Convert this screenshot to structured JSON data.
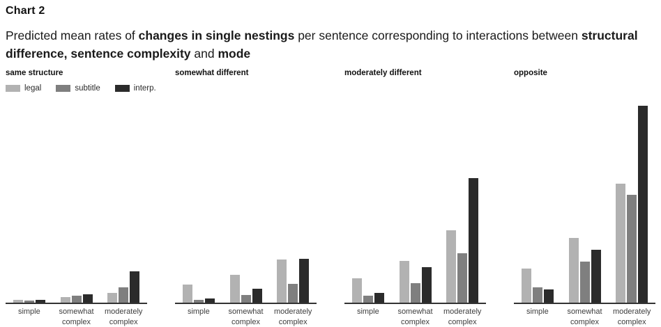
{
  "title": "Chart 2",
  "subtitle": {
    "segments": [
      {
        "text": "Predicted mean rates of ",
        "bold": false
      },
      {
        "text": "changes in single nestings",
        "bold": true
      },
      {
        "text": " per sentence corresponding to interactions between ",
        "bold": false
      },
      {
        "text": "structural difference, sentence complexity",
        "bold": true
      },
      {
        "text": " and ",
        "bold": false
      },
      {
        "text": "mode",
        "bold": true
      }
    ]
  },
  "legend": {
    "items": [
      {
        "label": "legal",
        "color": "#b2b2b2"
      },
      {
        "label": "subtitle",
        "color": "#7f7f7f"
      },
      {
        "label": "interp.",
        "color": "#2b2b2b"
      }
    ]
  },
  "colors": {
    "axis_line": "#333333",
    "tick_label": "#3d3d3d",
    "text": "#111111"
  },
  "chart_data": {
    "type": "bar",
    "title": "Chart 2",
    "subtitle_plain": "Predicted mean rates of changes in single nestings per sentence corresponding to interactions between structural difference, sentence complexity and mode",
    "layout": "4 small-multiple panels side by side, grouped bars, shared baseline",
    "panel_titles": [
      "same structure",
      "somewhat different",
      "moderately different",
      "opposite"
    ],
    "categories": [
      "simple",
      "somewhat complex",
      "moderately complex"
    ],
    "series_names": [
      "legal",
      "subtitle",
      "interp."
    ],
    "y_axis_note": "y-axis has no ticks, labels or gridlines; values are relative bar heights measured in screen pixels (baseline 0, tallest bar 283)",
    "ylim": [
      0,
      287
    ],
    "grid": false,
    "legend_position": "top-left under first panel title",
    "panels": [
      {
        "panel": "same structure",
        "series": [
          {
            "name": "legal",
            "values": [
              4,
              8,
              14
            ]
          },
          {
            "name": "subtitle",
            "values": [
              3,
              10,
              22
            ]
          },
          {
            "name": "interp.",
            "values": [
              4,
              12,
              45
            ]
          }
        ]
      },
      {
        "panel": "somewhat different",
        "series": [
          {
            "name": "legal",
            "values": [
              26,
              40,
              62
            ]
          },
          {
            "name": "subtitle",
            "values": [
              4,
              11,
              27
            ]
          },
          {
            "name": "interp.",
            "values": [
              6,
              20,
              63
            ]
          }
        ]
      },
      {
        "panel": "moderately different",
        "series": [
          {
            "name": "legal",
            "values": [
              35,
              60,
              104
            ]
          },
          {
            "name": "subtitle",
            "values": [
              10,
              28,
              71
            ]
          },
          {
            "name": "interp.",
            "values": [
              14,
              51,
              179
            ]
          }
        ]
      },
      {
        "panel": "opposite",
        "series": [
          {
            "name": "legal",
            "values": [
              49,
              93,
              171
            ]
          },
          {
            "name": "subtitle",
            "values": [
              22,
              59,
              155
            ]
          },
          {
            "name": "interp.",
            "values": [
              19,
              76,
              283
            ]
          }
        ]
      }
    ]
  }
}
